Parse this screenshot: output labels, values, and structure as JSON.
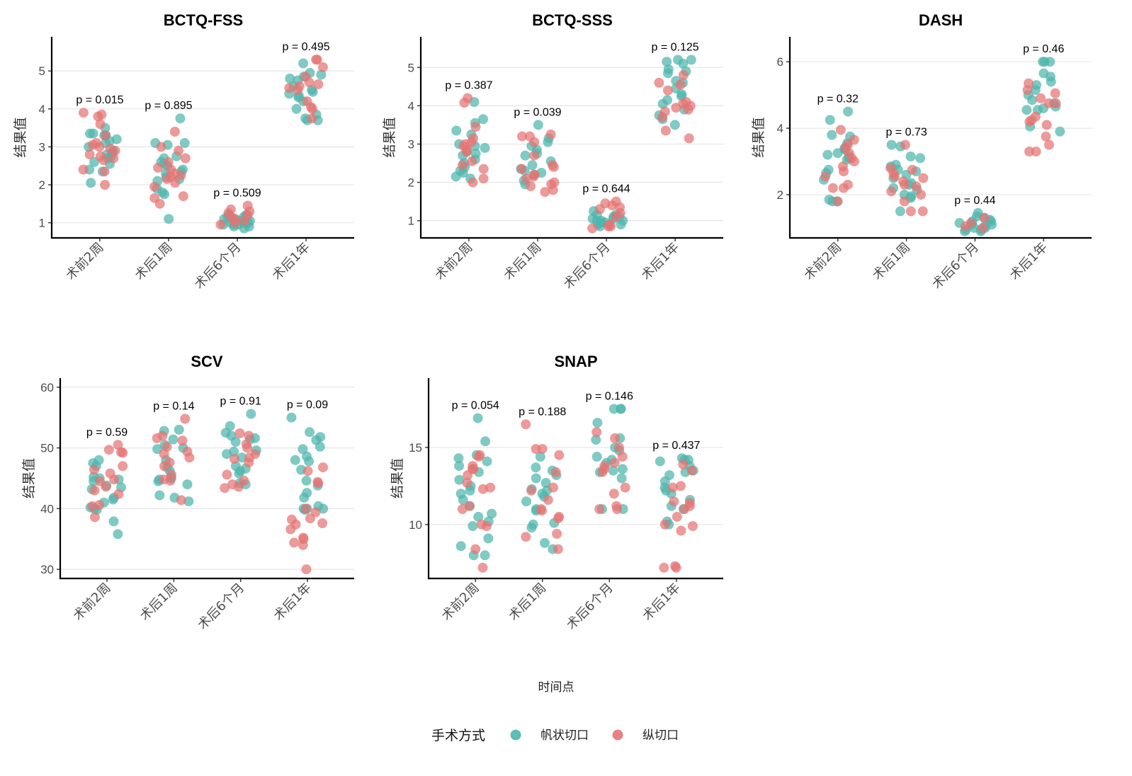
{
  "figure": {
    "x_axis_title": "时间点",
    "y_axis_title": "结果值",
    "legend": {
      "title": "手术方式",
      "items": [
        {
          "label": "帆状切口",
          "color": "#4DB6AC"
        },
        {
          "label": "纵切口",
          "color": "#E57373"
        }
      ]
    }
  },
  "chart_data": [
    {
      "type": "scatter",
      "subtype": "jitter-strip",
      "title": "BCTQ-FSS",
      "xlabel": "时间点",
      "ylabel": "结果值",
      "categories": [
        "术前2周",
        "术后1周",
        "术后6个月",
        "术后1年"
      ],
      "yticks": [
        1,
        2,
        3,
        4,
        5
      ],
      "ylim": [
        0.6,
        5.9
      ],
      "grid": "horizontal-major",
      "p_values": [
        "p = 0.015",
        "p = 0.895",
        "p = 0.509",
        "p = 0.495"
      ],
      "series": [
        {
          "name": "帆状切口",
          "color": "#4DB6AC",
          "values": [
            [
              3.5,
              3.35,
              3.3,
              3.2,
              3.3,
              3.1,
              3.0,
              2.9,
              2.8,
              2.75,
              2.7,
              2.6,
              2.55,
              2.4,
              2.35,
              2.05,
              3.35,
              3.15,
              2.85
            ],
            [
              3.75,
              3.1,
              3.05,
              2.75,
              2.7,
              2.6,
              2.55,
              2.4,
              2.35,
              2.3,
              2.2,
              2.15,
              2.1,
              1.9,
              1.8,
              1.75,
              1.1,
              3.1,
              2.5
            ],
            [
              1.2,
              1.15,
              1.1,
              1.05,
              1.0,
              1.0,
              0.95,
              0.9,
              0.85,
              1.1,
              1.05,
              0.95,
              1.15,
              0.9,
              1.0,
              1.2,
              1.05,
              0.95
            ],
            [
              5.2,
              4.9,
              4.85,
              4.8,
              4.75,
              4.6,
              4.5,
              4.4,
              4.35,
              4.3,
              4.2,
              4.0,
              3.85,
              3.75,
              3.7,
              3.7,
              4.95,
              4.45
            ]
          ]
        },
        {
          "name": "纵切口",
          "color": "#E57373",
          "values": [
            [
              3.9,
              3.85,
              3.8,
              3.6,
              3.3,
              3.05,
              3.0,
              2.9,
              2.8,
              2.75,
              2.7,
              2.65,
              2.4,
              2.35,
              2.0,
              3.1,
              2.95
            ],
            [
              3.4,
              3.0,
              2.9,
              2.7,
              2.6,
              2.45,
              2.4,
              2.3,
              2.25,
              2.2,
              2.05,
              1.95,
              1.7,
              1.65,
              1.5,
              2.15
            ],
            [
              1.45,
              1.35,
              1.3,
              1.25,
              1.2,
              1.1,
              1.0,
              0.95,
              1.15,
              1.05
            ],
            [
              5.3,
              5.3,
              5.1,
              4.7,
              4.65,
              4.6,
              4.55,
              4.5,
              4.2,
              4.05,
              4.0,
              3.75,
              4.85
            ]
          ]
        }
      ]
    },
    {
      "type": "scatter",
      "subtype": "jitter-strip",
      "title": "BCTQ-SSS",
      "xlabel": "时间点",
      "ylabel": "结果值",
      "categories": [
        "术前2周",
        "术后1周",
        "术后6个月",
        "术后1年"
      ],
      "yticks": [
        1,
        2,
        3,
        4,
        5
      ],
      "ylim": [
        0.55,
        5.8
      ],
      "grid": "horizontal-major",
      "p_values": [
        "p = 0.387",
        "p = 0.039",
        "p = 0.644",
        "p = 0.125"
      ],
      "series": [
        {
          "name": "帆状切口",
          "color": "#4DB6AC",
          "values": [
            [
              4.1,
              3.65,
              3.55,
              3.35,
              3.25,
              3.0,
              2.95,
              2.8,
              2.7,
              2.6,
              2.5,
              2.4,
              2.3,
              2.25,
              2.15,
              2.1,
              2.9,
              2.75
            ],
            [
              3.5,
              3.15,
              3.05,
              2.95,
              2.85,
              2.75,
              2.7,
              2.55,
              2.45,
              2.35,
              2.25,
              2.2,
              2.05,
              1.95,
              2.3
            ],
            [
              1.25,
              1.15,
              1.1,
              1.05,
              1.0,
              1.0,
              0.95,
              0.9,
              0.85,
              1.05,
              1.1,
              0.95,
              1.0,
              1.15,
              0.9
            ],
            [
              5.2,
              5.2,
              5.15,
              5.1,
              4.95,
              4.9,
              4.85,
              4.65,
              4.6,
              4.45,
              4.3,
              4.25,
              4.15,
              4.05,
              3.9,
              3.75,
              3.65,
              3.5
            ]
          ]
        },
        {
          "name": "纵切口",
          "color": "#E57373",
          "values": [
            [
              4.2,
              4.08,
              3.45,
              3.15,
              3.05,
              2.95,
              2.85,
              2.8,
              2.55,
              2.45,
              2.35,
              2.1,
              2.0,
              3.0
            ],
            [
              3.25,
              3.2,
              3.2,
              3.05,
              2.7,
              2.45,
              2.4,
              2.35,
              2.2,
              2.15,
              2.1,
              1.95,
              1.9,
              1.8,
              1.75,
              2.0
            ],
            [
              1.5,
              1.45,
              1.4,
              1.35,
              1.3,
              1.1,
              0.9,
              0.85,
              0.85,
              0.8,
              1.2
            ],
            [
              4.8,
              4.6,
              4.55,
              4.4,
              4.1,
              4.05,
              4.0,
              3.95,
              3.9,
              3.85,
              3.7,
              3.35,
              3.15
            ]
          ]
        }
      ]
    },
    {
      "type": "scatter",
      "subtype": "jitter-strip",
      "title": "DASH",
      "xlabel": "时间点",
      "ylabel": "结果值",
      "categories": [
        "术前2周",
        "术后1周",
        "术后6个月",
        "术后1年"
      ],
      "yticks": [
        2,
        4,
        6
      ],
      "ylim": [
        0.7,
        6.75
      ],
      "grid": "horizontal-major",
      "p_values": [
        "p = 0.32",
        "p = 0.73",
        "p = 0.44",
        "p = 0.46"
      ],
      "series": [
        {
          "name": "帆状切口",
          "color": "#4DB6AC",
          "values": [
            [
              4.5,
              4.25,
              3.8,
              3.75,
              3.55,
              3.4,
              3.35,
              3.2,
              3.15,
              3.1,
              3.05,
              2.75,
              2.65,
              2.45,
              1.85,
              1.8,
              1.8,
              3.25
            ],
            [
              3.5,
              3.45,
              3.15,
              3.1,
              2.9,
              2.85,
              2.75,
              2.7,
              2.6,
              2.35,
              2.3,
              2.2,
              2.15,
              2.0,
              1.95,
              1.9,
              1.5,
              2.5
            ],
            [
              1.45,
              1.35,
              1.3,
              1.2,
              1.15,
              1.1,
              1.05,
              1.0,
              0.95,
              0.9,
              0.9,
              1.25,
              1.1,
              1.0,
              1.2,
              0.95
            ],
            [
              6.0,
              6.0,
              6.0,
              5.65,
              5.55,
              5.4,
              5.3,
              5.15,
              5.0,
              4.85,
              4.65,
              4.6,
              4.55,
              4.55,
              4.05,
              3.9,
              4.75
            ]
          ]
        },
        {
          "name": "纵切口",
          "color": "#E57373",
          "values": [
            [
              3.95,
              3.65,
              3.5,
              3.4,
              3.25,
              3.0,
              2.85,
              2.7,
              2.55,
              2.3,
              2.2,
              2.2,
              1.8,
              3.1
            ],
            [
              3.5,
              2.8,
              2.75,
              2.65,
              2.55,
              2.5,
              2.4,
              2.3,
              2.1,
              2.0,
              1.8,
              1.5,
              1.5,
              2.25
            ],
            [
              1.3,
              1.15,
              1.05,
              1.0
            ],
            [
              5.35,
              5.15,
              5.05,
              4.9,
              4.75,
              4.75,
              4.35,
              4.25,
              4.2,
              4.1,
              3.75,
              3.5,
              3.3,
              3.3
            ]
          ]
        }
      ]
    },
    {
      "type": "scatter",
      "subtype": "jitter-strip",
      "title": "SCV",
      "xlabel": "时间点",
      "ylabel": "结果值",
      "categories": [
        "术前2周",
        "术后1周",
        "术后6个月",
        "术后1年"
      ],
      "yticks": [
        30,
        40,
        50,
        60
      ],
      "ylim": [
        28.5,
        61.5
      ],
      "grid": "horizontal-major",
      "p_values": [
        "p = 0.59",
        "p = 0.14",
        "p = 0.91",
        "p = 0.09"
      ],
      "series": [
        {
          "name": "帆状切口",
          "color": "#4DB6AC",
          "values": [
            [
              48.0,
              47.5,
              47.0,
              45.2,
              45.0,
              44.8,
              44.5,
              43.8,
              43.5,
              43.2,
              41.8,
              41.5,
              41.0,
              40.2,
              40.0,
              39.8,
              37.9,
              35.8
            ],
            [
              53.0,
              52.8,
              51.4,
              50.5,
              50.0,
              49.8,
              48.0,
              46.8,
              46.2,
              45.2,
              45.0,
              44.8,
              44.5,
              44.0,
              42.2,
              41.8,
              41.2
            ],
            [
              55.6,
              53.6,
              52.5,
              52.0,
              51.6,
              51.4,
              51.0,
              49.6,
              49.4,
              49.0,
              47.0,
              46.6,
              46.2,
              45.8,
              44.2,
              44.0,
              48.4
            ],
            [
              55.0,
              52.6,
              51.8,
              51.3,
              50.2,
              49.8,
              48.6,
              48.0,
              47.8,
              46.4,
              44.6,
              43.8,
              42.6,
              41.8,
              40.4,
              40.0,
              40.0,
              40.0,
              39.8
            ]
          ]
        },
        {
          "name": "纵切口",
          "color": "#E57373",
          "values": [
            [
              50.5,
              49.7,
              49.3,
              49.2,
              47.0,
              46.4,
              45.8,
              44.8,
              44.5,
              43.6,
              43.0,
              42.4,
              40.6,
              40.4,
              38.6
            ],
            [
              54.8,
              52.0,
              51.6,
              51.2,
              50.2,
              49.4,
              49.0,
              48.4,
              47.6,
              47.0,
              45.6,
              44.8,
              44.6,
              41.4
            ],
            [
              52.4,
              52.0,
              50.6,
              50.0,
              49.0,
              48.4,
              48.2,
              47.6,
              45.6,
              44.6,
              44.0,
              43.6,
              43.4
            ],
            [
              46.8,
              46.2,
              44.4,
              44.2,
              40.0,
              39.4,
              38.4,
              38.2,
              37.6,
              37.4,
              36.6,
              35.2,
              35.0,
              34.4,
              34.0,
              30.0
            ]
          ]
        }
      ]
    },
    {
      "type": "scatter",
      "subtype": "jitter-strip",
      "title": "SNAP",
      "xlabel": "时间点",
      "ylabel": "结果值",
      "categories": [
        "术前2周",
        "术后1周",
        "术后6个月",
        "术后1年"
      ],
      "yticks": [
        10,
        15
      ],
      "ylim": [
        6.5,
        19.5
      ],
      "grid": "horizontal-major",
      "p_values": [
        "p = 0.054",
        "p = 0.188",
        "p = 0.146",
        "p = 0.437"
      ],
      "series": [
        {
          "name": "帆状切口",
          "color": "#4DB6AC",
          "values": [
            [
              16.9,
              15.4,
              14.5,
              14.3,
              14.1,
              13.8,
              13.4,
              12.9,
              12.5,
              12.2,
              12.0,
              11.6,
              11.2,
              10.7,
              10.5,
              10.2,
              9.9,
              9.1,
              8.6,
              8.0,
              8.0
            ],
            [
              14.4,
              13.7,
              13.5,
              13.2,
              13.0,
              12.7,
              12.3,
              12.2,
              12.0,
              11.8,
              11.5,
              11.0,
              10.9,
              10.1,
              10.0,
              9.8,
              8.8,
              8.4
            ],
            [
              17.5,
              17.5,
              17.5,
              16.6,
              15.6,
              15.5,
              15.0,
              14.8,
              14.4,
              14.2,
              14.0,
              13.6,
              13.5,
              13.4,
              13.0,
              11.0,
              11.0
            ],
            [
              14.3,
              14.2,
              14.2,
              14.1,
              13.8,
              13.5,
              13.4,
              13.2,
              12.8,
              12.4,
              12.2,
              12.0,
              11.6,
              11.2,
              11.0,
              10.2,
              10.0
            ]
          ]
        },
        {
          "name": "纵切口",
          "color": "#E57373",
          "values": [
            [
              14.5,
              14.4,
              13.8,
              13.6,
              13.6,
              13.2,
              12.7,
              12.4,
              12.3,
              11.2,
              11.0,
              10.0,
              9.9,
              8.4,
              7.2
            ],
            [
              16.5,
              14.9,
              14.9,
              14.5,
              13.4,
              12.4,
              12.2,
              11.6,
              11.0,
              10.9,
              10.5,
              10.4,
              9.4,
              9.2,
              8.4
            ],
            [
              16.0,
              15.6,
              15.0,
              14.4,
              14.0,
              13.8,
              13.4,
              12.4,
              12.0,
              11.2,
              11.0,
              11.0,
              13.6
            ],
            [
              13.9,
              13.5,
              12.5,
              12.4,
              11.5,
              11.4,
              11.2,
              11.0,
              10.5,
              10.0,
              9.9,
              9.6,
              7.3,
              7.2,
              7.2
            ]
          ]
        }
      ]
    }
  ]
}
